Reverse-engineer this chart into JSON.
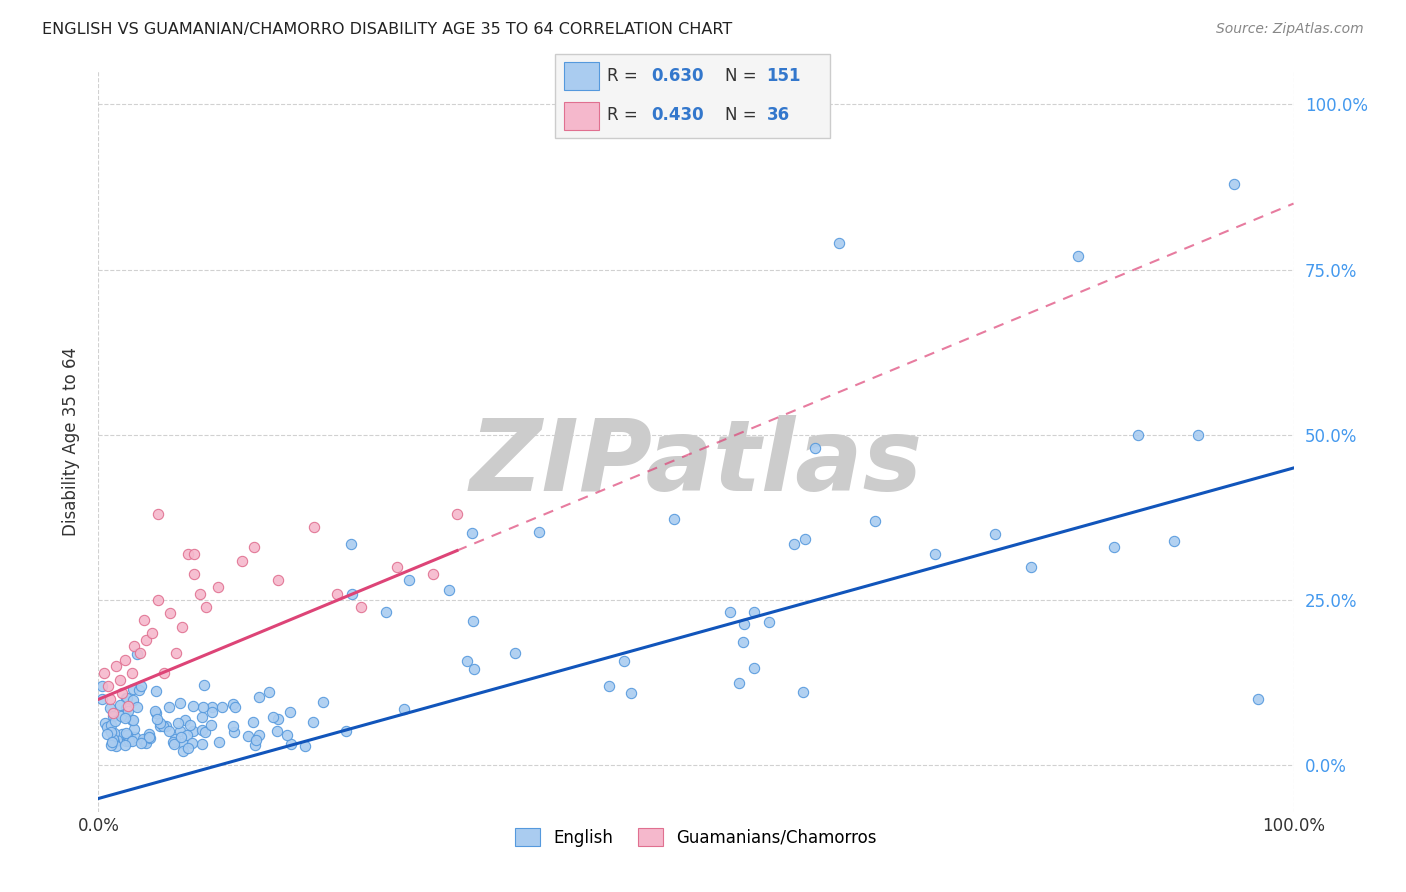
{
  "title": "ENGLISH VS GUAMANIAN/CHAMORRO DISABILITY AGE 35 TO 64 CORRELATION CHART",
  "source": "Source: ZipAtlas.com",
  "ylabel": "Disability Age 35 to 64",
  "ytick_vals": [
    0.0,
    0.25,
    0.5,
    0.75,
    1.0
  ],
  "ytick_labels": [
    "0.0%",
    "25.0%",
    "50.0%",
    "75.0%",
    "100.0%"
  ],
  "xtick_vals": [
    0.0,
    1.0
  ],
  "xtick_labels": [
    "0.0%",
    "100.0%"
  ],
  "english_R": 0.63,
  "english_N": 151,
  "guam_R": 0.43,
  "guam_N": 36,
  "english_scatter_color": "#aaccf0",
  "english_edge_color": "#5599dd",
  "english_line_color": "#1155bb",
  "guam_scatter_color": "#f5b8cc",
  "guam_edge_color": "#e07090",
  "guam_line_color": "#dd4477",
  "background_color": "#ffffff",
  "grid_color": "#cccccc",
  "title_color": "#222222",
  "source_color": "#888888",
  "right_tick_color": "#4499ee",
  "watermark_color": "#cccccc",
  "watermark_text": "ZIPatlas",
  "xmin": 0.0,
  "xmax": 1.0,
  "ymin": -0.07,
  "ymax": 1.05,
  "legend_box_color": "#f5f5f5",
  "legend_box_edge": "#cccccc",
  "legend_text_black": "#333333",
  "legend_text_blue": "#3377cc"
}
